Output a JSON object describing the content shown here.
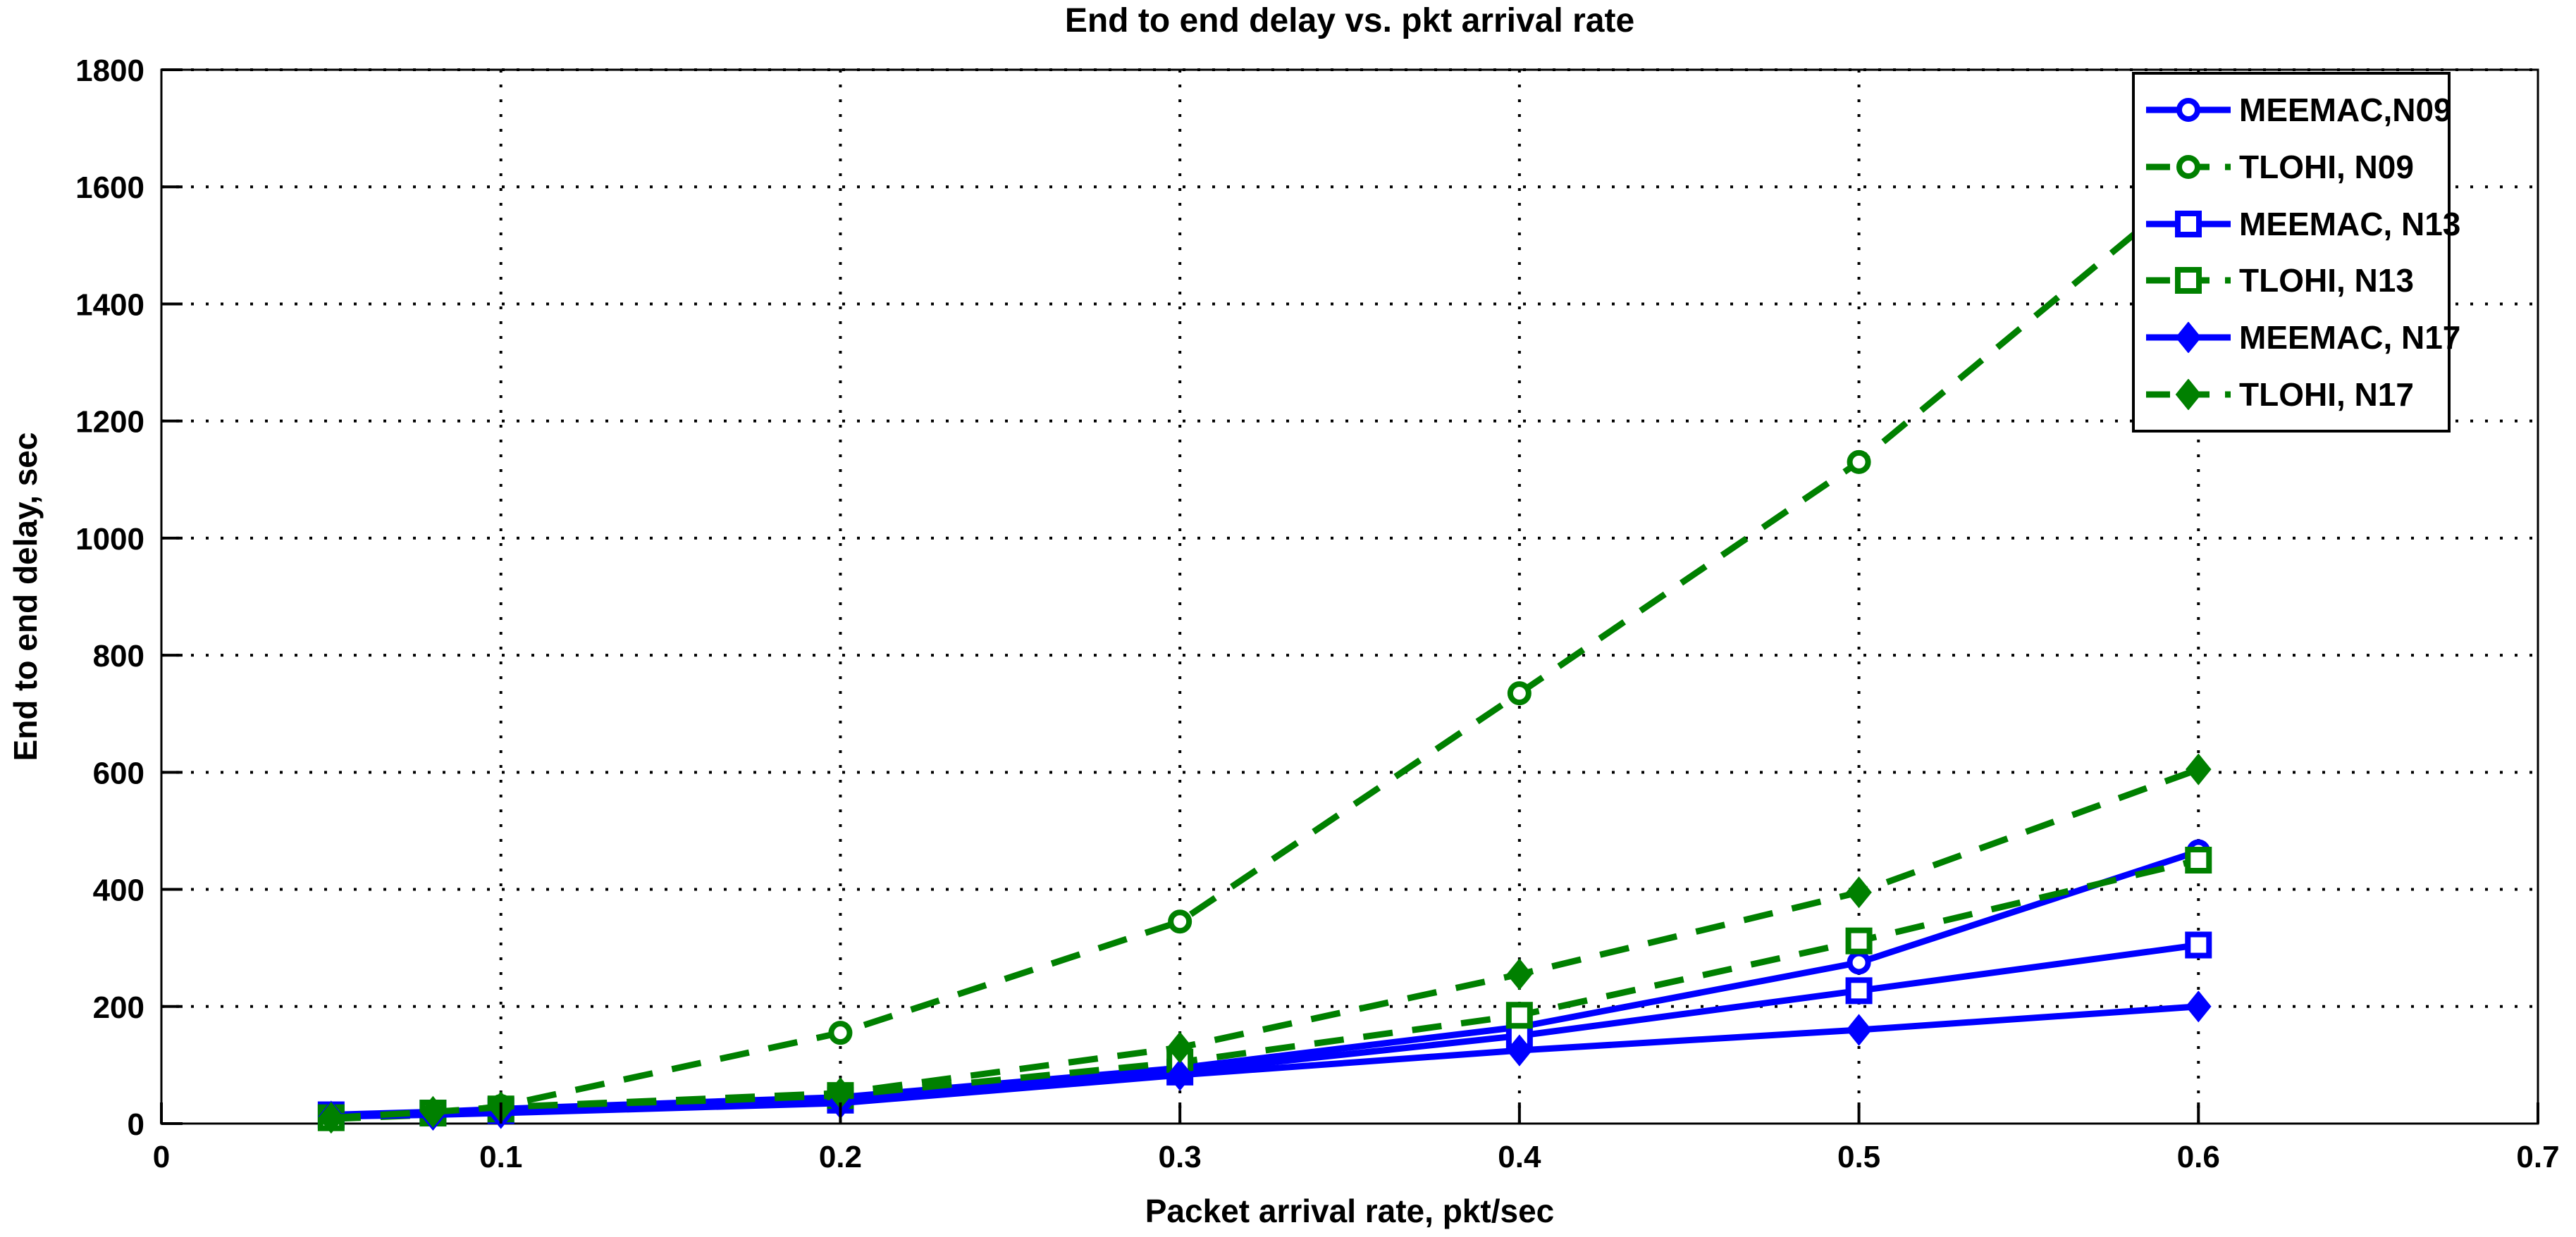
{
  "chart_data": {
    "type": "line",
    "title": "End to end delay vs. pkt arrival rate",
    "xlabel": "Packet arrival rate, pkt/sec",
    "ylabel": "End to end delay, sec",
    "xlim": [
      0,
      0.7
    ],
    "ylim": [
      0,
      1800
    ],
    "x_ticks": [
      0,
      0.1,
      0.2,
      0.3,
      0.4,
      0.5,
      0.6,
      0.7
    ],
    "x_tick_labels": [
      "0",
      "0.1",
      "0.2",
      "0.3",
      "0.4",
      "0.5",
      "0.6",
      "0.7"
    ],
    "y_ticks": [
      0,
      200,
      400,
      600,
      800,
      1000,
      1200,
      1400,
      1600,
      1800
    ],
    "y_tick_labels": [
      "0",
      "200",
      "400",
      "600",
      "800",
      "1000",
      "1200",
      "1400",
      "1600",
      "1800"
    ],
    "grid": "dotted",
    "legend_position": "top-right",
    "x": [
      0.05,
      0.08,
      0.1,
      0.2,
      0.3,
      0.4,
      0.5,
      0.6
    ],
    "series": [
      {
        "name": "MEEMAC,N09",
        "color": "#0000FF",
        "style": "solid",
        "marker": "circle-open",
        "values": [
          15,
          20,
          25,
          45,
          95,
          165,
          275,
          465
        ]
      },
      {
        "name": "TLOHI, N09",
        "color": "#008000",
        "style": "dashed",
        "marker": "circle-open",
        "values": [
          8,
          15,
          30,
          155,
          345,
          735,
          1130,
          1610
        ]
      },
      {
        "name": "MEEMAC, N13",
        "color": "#0000FF",
        "style": "solid",
        "marker": "square-open",
        "values": [
          15,
          18,
          22,
          40,
          88,
          150,
          227,
          305
        ]
      },
      {
        "name": "TLOHI, N13",
        "color": "#008000",
        "style": "dashed",
        "marker": "square-open",
        "values": [
          10,
          18,
          25,
          48,
          105,
          185,
          312,
          450
        ]
      },
      {
        "name": "MEEMAC, N17",
        "color": "#0000FF",
        "style": "solid",
        "marker": "diamond-filled",
        "values": [
          12,
          15,
          18,
          35,
          83,
          125,
          160,
          200
        ]
      },
      {
        "name": "TLOHI, N17",
        "color": "#008000",
        "style": "dashed",
        "marker": "diamond-filled",
        "values": [
          10,
          20,
          28,
          52,
          130,
          255,
          395,
          605
        ]
      }
    ]
  }
}
